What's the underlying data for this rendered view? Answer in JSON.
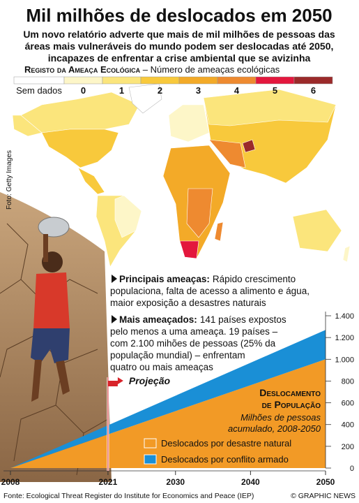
{
  "title": "Mil milhões de deslocados em 2050",
  "subtitle": [
    "Um novo relatório adverte que mais de mil milhões  de pessoas das",
    "áreas mais vulneráveis do mundo podem ser deslocadas até 2050,",
    "incapazes de enfrentar a crise ambiental que se avizinha"
  ],
  "map_legend": {
    "title": "Registo da Ameaça Ecológica",
    "subtitle": " – Número de ameaças ecológicas",
    "items": [
      {
        "label": "Sem dados",
        "color": "#ffffff"
      },
      {
        "label": "0",
        "color": "#fdf6c8"
      },
      {
        "label": "1",
        "color": "#fbe57c"
      },
      {
        "label": "2",
        "color": "#f8c93c"
      },
      {
        "label": "3",
        "color": "#f3aa28"
      },
      {
        "label": "4",
        "color": "#ee8a30"
      },
      {
        "label": "5",
        "color": "#e3173d"
      },
      {
        "label": "6",
        "color": "#9b2a2a"
      }
    ]
  },
  "photo_credit": "Foto: Getty Images",
  "notes": [
    {
      "label": "Principais ameaças:",
      "lines": [
        "Rápido crescimento",
        "populaciona, falta de acesso a alimento e água,",
        "maior exposição a desastres naturais"
      ]
    },
    {
      "label": "Mais ameaçados:",
      "lines": [
        "141 países expostos",
        "pelo menos a uma ameaça. 19 países –",
        "com 2.100 mihões de pessoas (25% da",
        "população mundial) – enfrentam",
        "quatro ou mais ameaças"
      ]
    }
  ],
  "chart_data": {
    "type": "stacked_area",
    "title": [
      "Deslocamento",
      "de População"
    ],
    "subtitle": [
      "Milhões de pessoas",
      "acumulado, 2008-2050"
    ],
    "x": [
      2008,
      2050
    ],
    "xlim": [
      2008,
      2050
    ],
    "xticks": [
      2008,
      2021,
      2030,
      2040,
      2050
    ],
    "ylim": [
      0,
      1400
    ],
    "yticks": [
      0,
      200,
      400,
      600,
      800,
      {
        "value": 1000,
        "label": "1.000"
      },
      {
        "value": 1200,
        "label": "1.200"
      },
      {
        "value": 1400,
        "label": "1.400"
      }
    ],
    "series": [
      {
        "name": "Deslocados por desastre natural",
        "color": "#f29a26",
        "values": [
          0,
          1000
        ]
      },
      {
        "name": "Deslocados por conflito armado",
        "color": "#1a8fd6",
        "values": [
          0,
          270
        ]
      }
    ],
    "annotation": {
      "x": 2021,
      "label": "Projeção"
    }
  },
  "source": "Fonte: Ecological Threat Register do Institute for Economics and Peace (IEP)",
  "credit": "© GRAPHIC NEWS"
}
